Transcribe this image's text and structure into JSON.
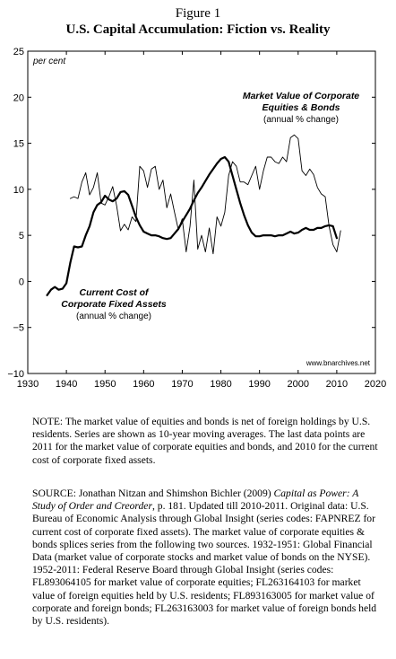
{
  "figure": {
    "label": "Figure 1",
    "title": "U.S. Capital Accumulation: Fiction vs. Reality"
  },
  "chart_data": {
    "type": "line",
    "unit_label": "per cent",
    "xlim": [
      1930,
      2020
    ],
    "ylim": [
      -10,
      25
    ],
    "x_ticks": [
      "1930",
      "1940",
      "1950",
      "1960",
      "1970",
      "1980",
      "1990",
      "2000",
      "2010",
      "2020"
    ],
    "y_ticks": [
      "25",
      "20",
      "15",
      "10",
      "5",
      "0",
      "−5",
      "−10"
    ],
    "grid": false,
    "series": [
      {
        "name": "Market Value of Corporate Equities & Bonds",
        "subtitle": "(annual % change)",
        "style": "thin",
        "color": "#000000",
        "points": [
          [
            1941,
            9.0
          ],
          [
            1942,
            9.2
          ],
          [
            1943,
            9.0
          ],
          [
            1944,
            10.8
          ],
          [
            1945,
            11.8
          ],
          [
            1946,
            9.4
          ],
          [
            1947,
            10.2
          ],
          [
            1948,
            11.8
          ],
          [
            1949,
            8.5
          ],
          [
            1950,
            8.3
          ],
          [
            1951,
            9.2
          ],
          [
            1952,
            10.3
          ],
          [
            1953,
            8.2
          ],
          [
            1954,
            5.5
          ],
          [
            1955,
            6.2
          ],
          [
            1956,
            5.6
          ],
          [
            1957,
            7.0
          ],
          [
            1958,
            6.5
          ],
          [
            1959,
            12.5
          ],
          [
            1960,
            12.0
          ],
          [
            1961,
            10.2
          ],
          [
            1962,
            12.2
          ],
          [
            1963,
            12.5
          ],
          [
            1964,
            10.0
          ],
          [
            1965,
            11.0
          ],
          [
            1966,
            8.0
          ],
          [
            1967,
            9.5
          ],
          [
            1968,
            7.5
          ],
          [
            1969,
            5.6
          ],
          [
            1970,
            6.8
          ],
          [
            1971,
            3.2
          ],
          [
            1972,
            6.0
          ],
          [
            1973,
            11.0
          ],
          [
            1974,
            3.5
          ],
          [
            1975,
            5.0
          ],
          [
            1976,
            3.2
          ],
          [
            1977,
            5.8
          ],
          [
            1978,
            3.0
          ],
          [
            1979,
            7.0
          ],
          [
            1980,
            6.0
          ],
          [
            1981,
            7.5
          ],
          [
            1982,
            11.5
          ],
          [
            1983,
            13.0
          ],
          [
            1984,
            12.5
          ],
          [
            1985,
            10.8
          ],
          [
            1986,
            10.8
          ],
          [
            1987,
            10.5
          ],
          [
            1988,
            11.5
          ],
          [
            1989,
            12.5
          ],
          [
            1990,
            10.0
          ],
          [
            1991,
            12.0
          ],
          [
            1992,
            13.5
          ],
          [
            1993,
            13.5
          ],
          [
            1994,
            13.0
          ],
          [
            1995,
            12.8
          ],
          [
            1996,
            13.5
          ],
          [
            1997,
            13.0
          ],
          [
            1998,
            15.6
          ],
          [
            1999,
            15.9
          ],
          [
            2000,
            15.5
          ],
          [
            2001,
            12.0
          ],
          [
            2002,
            11.5
          ],
          [
            2003,
            12.2
          ],
          [
            2004,
            11.6
          ],
          [
            2005,
            10.2
          ],
          [
            2006,
            9.5
          ],
          [
            2007,
            9.2
          ],
          [
            2008,
            6.0
          ],
          [
            2009,
            4.0
          ],
          [
            2010,
            3.2
          ],
          [
            2011,
            5.5
          ]
        ]
      },
      {
        "name": "Current Cost of Corporate Fixed Assets",
        "subtitle": "(annual % change)",
        "style": "thick",
        "color": "#000000",
        "points": [
          [
            1935,
            -1.5
          ],
          [
            1936,
            -0.9
          ],
          [
            1937,
            -0.6
          ],
          [
            1938,
            -0.9
          ],
          [
            1939,
            -0.8
          ],
          [
            1940,
            -0.2
          ],
          [
            1941,
            2.0
          ],
          [
            1942,
            3.8
          ],
          [
            1943,
            3.7
          ],
          [
            1944,
            3.8
          ],
          [
            1945,
            5.0
          ],
          [
            1946,
            6.0
          ],
          [
            1947,
            7.5
          ],
          [
            1948,
            8.3
          ],
          [
            1949,
            8.6
          ],
          [
            1950,
            9.3
          ],
          [
            1951,
            8.9
          ],
          [
            1952,
            8.7
          ],
          [
            1953,
            9.0
          ],
          [
            1954,
            9.7
          ],
          [
            1955,
            9.8
          ],
          [
            1956,
            9.4
          ],
          [
            1957,
            8.2
          ],
          [
            1958,
            7.0
          ],
          [
            1959,
            6.1
          ],
          [
            1960,
            5.4
          ],
          [
            1961,
            5.2
          ],
          [
            1962,
            5.0
          ],
          [
            1963,
            5.0
          ],
          [
            1964,
            4.9
          ],
          [
            1965,
            4.7
          ],
          [
            1966,
            4.6
          ],
          [
            1967,
            4.7
          ],
          [
            1968,
            5.2
          ],
          [
            1969,
            5.7
          ],
          [
            1970,
            6.5
          ],
          [
            1971,
            7.2
          ],
          [
            1972,
            7.9
          ],
          [
            1973,
            8.8
          ],
          [
            1974,
            9.6
          ],
          [
            1975,
            10.2
          ],
          [
            1976,
            10.9
          ],
          [
            1977,
            11.6
          ],
          [
            1978,
            12.2
          ],
          [
            1979,
            12.8
          ],
          [
            1980,
            13.3
          ],
          [
            1981,
            13.5
          ],
          [
            1982,
            13.0
          ],
          [
            1983,
            11.5
          ],
          [
            1984,
            10.0
          ],
          [
            1985,
            8.5
          ],
          [
            1986,
            7.2
          ],
          [
            1987,
            6.1
          ],
          [
            1988,
            5.3
          ],
          [
            1989,
            4.9
          ],
          [
            1990,
            4.9
          ],
          [
            1991,
            5.0
          ],
          [
            1992,
            5.0
          ],
          [
            1993,
            5.0
          ],
          [
            1994,
            4.9
          ],
          [
            1995,
            5.0
          ],
          [
            1996,
            5.0
          ],
          [
            1997,
            5.2
          ],
          [
            1998,
            5.4
          ],
          [
            1999,
            5.2
          ],
          [
            2000,
            5.3
          ],
          [
            2001,
            5.6
          ],
          [
            2002,
            5.8
          ],
          [
            2003,
            5.6
          ],
          [
            2004,
            5.6
          ],
          [
            2005,
            5.8
          ],
          [
            2006,
            5.8
          ],
          [
            2007,
            6.0
          ],
          [
            2008,
            6.1
          ],
          [
            2009,
            6.0
          ],
          [
            2010,
            4.7
          ]
        ]
      }
    ],
    "annotations": {
      "equities_title_line1": "Market Value of Corporate",
      "equities_title_line2": "Equities & Bonds",
      "equities_subtitle": "(annual % change)",
      "assets_title_line1": "Current Cost of",
      "assets_title_line2": "Corporate Fixed Assets",
      "assets_subtitle": "(annual % change)",
      "source_site": "www.bnarchives.net"
    }
  },
  "notes": {
    "note": "NOTE: The market value of equities and bonds is net of foreign holdings by U.S. residents. Series are shown as 10-year moving averages. The last data points are 2011 for the market value of corporate equities and bonds, and 2010 for the current cost of corporate fixed assets.",
    "source_prefix": "SOURCE: Jonathan Nitzan and Shimshon Bichler (2009) ",
    "source_book": "Capital as Power: A Study of Order and Creorder",
    "source_rest": ", p. 181. Updated till 2010-2011. Original data: U.S. Bureau of Economic Analysis through Global Insight (series codes: FAPNREZ for current cost of corporate fixed assets). The market value of corporate equities & bonds splices series from the following two sources. 1932-1951: Global Financial Data (market value of corporate stocks and market value of bonds on the NYSE). 1952-2011: Federal Reserve Board through Global Insight (series codes: FL893064105 for market value of corporate equities; FL263164103 for market value of foreign equities held by U.S. residents; FL893163005 for market value of corporate and foreign bonds; FL263163003 for market value of foreign bonds held by U.S. residents)."
  }
}
